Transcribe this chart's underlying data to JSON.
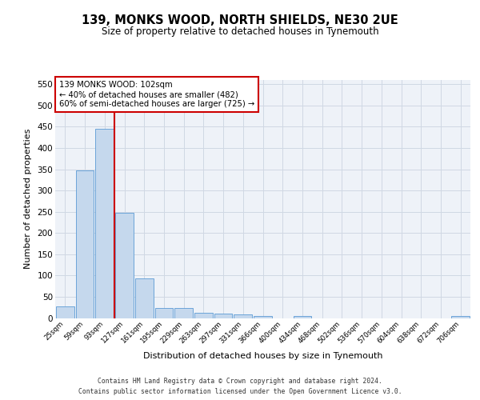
{
  "title": "139, MONKS WOOD, NORTH SHIELDS, NE30 2UE",
  "subtitle": "Size of property relative to detached houses in Tynemouth",
  "xlabel": "Distribution of detached houses by size in Tynemouth",
  "ylabel": "Number of detached properties",
  "categories": [
    "25sqm",
    "59sqm",
    "93sqm",
    "127sqm",
    "161sqm",
    "195sqm",
    "229sqm",
    "263sqm",
    "297sqm",
    "331sqm",
    "366sqm",
    "400sqm",
    "434sqm",
    "468sqm",
    "502sqm",
    "536sqm",
    "570sqm",
    "604sqm",
    "638sqm",
    "672sqm",
    "706sqm"
  ],
  "bar_values": [
    27,
    348,
    445,
    247,
    93,
    24,
    24,
    13,
    11,
    8,
    5,
    0,
    4,
    0,
    0,
    0,
    0,
    0,
    0,
    0,
    4
  ],
  "bar_color": "#c5d8ed",
  "bar_edge_color": "#5b9bd5",
  "grid_color": "#d0d8e4",
  "background_color": "#eef2f8",
  "red_line_x": 2.5,
  "red_line_color": "#cc0000",
  "annotation_text": "139 MONKS WOOD: 102sqm\n← 40% of detached houses are smaller (482)\n60% of semi-detached houses are larger (725) →",
  "annotation_box_color": "#ffffff",
  "annotation_box_edge": "#cc0000",
  "ylim": [
    0,
    560
  ],
  "yticks": [
    0,
    50,
    100,
    150,
    200,
    250,
    300,
    350,
    400,
    450,
    500,
    550
  ],
  "footer_line1": "Contains HM Land Registry data © Crown copyright and database right 2024.",
  "footer_line2": "Contains public sector information licensed under the Open Government Licence v3.0."
}
